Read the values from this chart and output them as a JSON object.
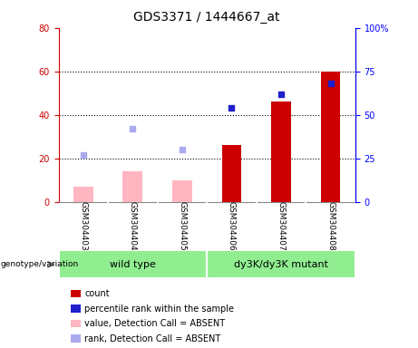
{
  "title": "GDS3371 / 1444667_at",
  "samples": [
    "GSM304403",
    "GSM304404",
    "GSM304405",
    "GSM304406",
    "GSM304407",
    "GSM304408"
  ],
  "count_values": [
    null,
    null,
    null,
    26,
    46,
    60
  ],
  "count_absent_values": [
    7,
    14,
    10,
    null,
    null,
    null
  ],
  "percentile_rank_values": [
    null,
    null,
    null,
    54,
    62,
    68
  ],
  "rank_absent_values": [
    27,
    42,
    30,
    null,
    null,
    null
  ],
  "left_ylim": [
    0,
    80
  ],
  "right_ylim": [
    0,
    100
  ],
  "left_yticks": [
    0,
    20,
    40,
    60,
    80
  ],
  "right_yticks": [
    0,
    25,
    50,
    75,
    100
  ],
  "right_yticklabels": [
    "0",
    "25",
    "50",
    "75",
    "100%"
  ],
  "bar_color_present": "#cc0000",
  "bar_color_absent": "#ffb6c1",
  "dot_color_present": "#1f1fcc",
  "dot_color_absent": "#aaaaee",
  "plot_bg_color": "#ffffff",
  "label_bg_color": "#d3d3d3",
  "group_color": "#90EE90",
  "bar_width": 0.4,
  "grid_lines": [
    20,
    40,
    60
  ],
  "wt_group": "wild type",
  "mut_group": "dy3K/dy3K mutant",
  "legend_items": [
    {
      "label": "count",
      "color": "#cc0000",
      "type": "square"
    },
    {
      "label": "percentile rank within the sample",
      "color": "#1f1fcc",
      "type": "square"
    },
    {
      "label": "value, Detection Call = ABSENT",
      "color": "#ffb6c1",
      "type": "square"
    },
    {
      "label": "rank, Detection Call = ABSENT",
      "color": "#aaaaee",
      "type": "square"
    }
  ]
}
